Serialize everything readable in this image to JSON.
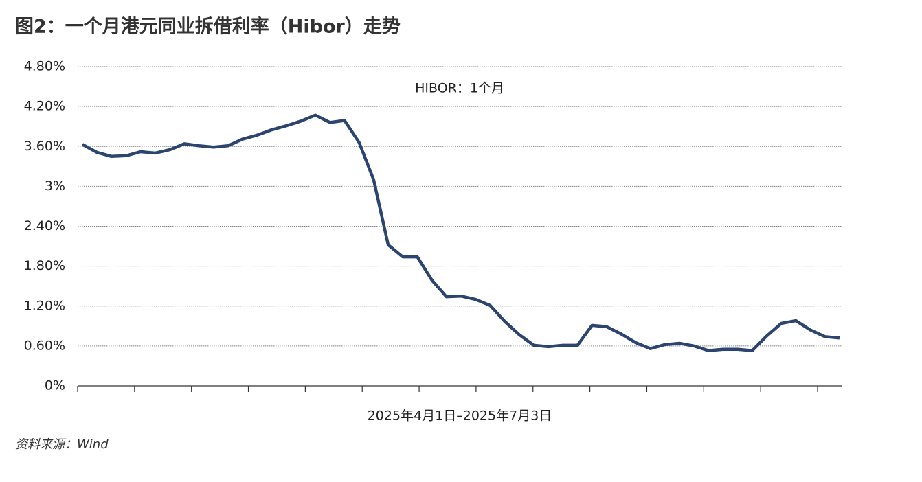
{
  "chart_data": {
    "type": "line",
    "title": "图2：一个月港元同业拆借利率（Hibor）走势",
    "x_label": "2025年4月1日–2025年7月3日",
    "source": "资料来源：Wind",
    "categories": [
      null,
      null,
      null,
      null,
      null,
      null,
      null,
      null,
      null,
      null,
      null,
      null,
      null,
      null,
      null,
      null,
      null,
      null,
      null,
      null,
      null,
      null,
      null,
      null,
      null,
      null,
      null,
      null,
      null,
      null,
      null,
      null,
      null,
      null,
      null,
      null,
      null,
      null,
      null,
      null,
      null,
      null,
      null,
      null,
      null,
      null,
      null,
      null,
      null,
      null,
      null,
      null,
      null
    ],
    "series": [
      {
        "name": "HIBOR：1个月",
        "color": "#2b4570",
        "values": [
          3.63,
          3.51,
          3.45,
          3.46,
          3.52,
          3.5,
          3.55,
          3.64,
          3.61,
          3.59,
          3.61,
          3.71,
          3.77,
          3.85,
          3.91,
          3.98,
          4.07,
          3.96,
          3.99,
          3.66,
          3.1,
          2.12,
          1.94,
          1.94,
          1.59,
          1.34,
          1.35,
          1.3,
          1.21,
          0.97,
          0.77,
          0.61,
          0.59,
          0.61,
          0.61,
          0.91,
          0.89,
          0.78,
          0.65,
          0.56,
          0.62,
          0.64,
          0.6,
          0.53,
          0.55,
          0.55,
          0.53,
          0.75,
          0.94,
          0.98,
          0.84,
          0.74,
          0.72
        ]
      }
    ],
    "ylim": [
      0,
      4.8
    ],
    "yticks": [
      {
        "value": 0,
        "label": "0%"
      },
      {
        "value": 0.6,
        "label": "0.60%"
      },
      {
        "value": 1.2,
        "label": "1.20%"
      },
      {
        "value": 1.8,
        "label": "1.80%"
      },
      {
        "value": 2.4,
        "label": "2.40%"
      },
      {
        "value": 3,
        "label": "3%"
      },
      {
        "value": 3.6,
        "label": "3.60%"
      },
      {
        "value": 4.2,
        "label": "4.20%"
      },
      {
        "value": 4.8,
        "label": "4.80%"
      }
    ],
    "grid": true
  }
}
